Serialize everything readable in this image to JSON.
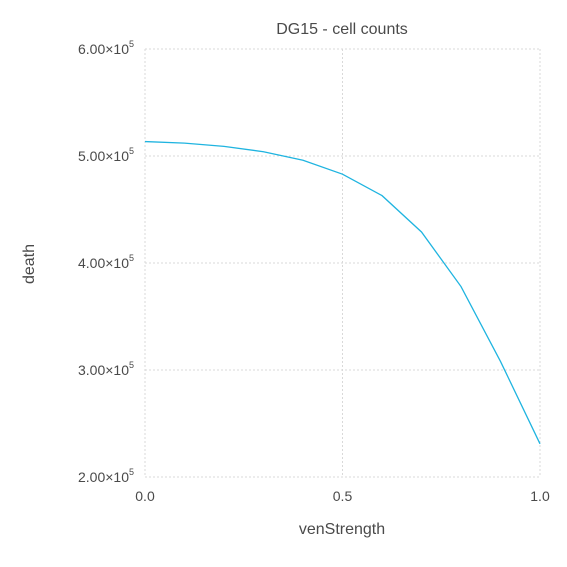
{
  "chart_data": {
    "type": "line",
    "title": "DG15 - cell counts",
    "xlabel": "venStrength",
    "ylabel": "death",
    "xlim": [
      0.0,
      1.0
    ],
    "ylim": [
      200000,
      600000
    ],
    "x_ticks": [
      {
        "value": 0.0,
        "label": "0.0"
      },
      {
        "value": 0.5,
        "label": "0.5"
      },
      {
        "value": 1.0,
        "label": "1.0"
      }
    ],
    "y_ticks": [
      {
        "value": 200000,
        "mantissa": "2.00",
        "times": "×10",
        "exp": "5"
      },
      {
        "value": 300000,
        "mantissa": "3.00",
        "times": "×10",
        "exp": "5"
      },
      {
        "value": 400000,
        "mantissa": "4.00",
        "times": "×10",
        "exp": "5"
      },
      {
        "value": 500000,
        "mantissa": "5.00",
        "times": "×10",
        "exp": "5"
      },
      {
        "value": 600000,
        "mantissa": "6.00",
        "times": "×10",
        "exp": "5"
      }
    ],
    "grid": true,
    "series": [
      {
        "color": "#1fb4e0",
        "x": [
          0.0,
          0.1,
          0.2,
          0.3,
          0.4,
          0.5,
          0.6,
          0.7,
          0.8,
          0.9,
          1.0
        ],
        "y": [
          513500,
          512000,
          509000,
          504000,
          496000,
          483000,
          463000,
          429000,
          378000,
          308000,
          231000
        ]
      }
    ]
  }
}
